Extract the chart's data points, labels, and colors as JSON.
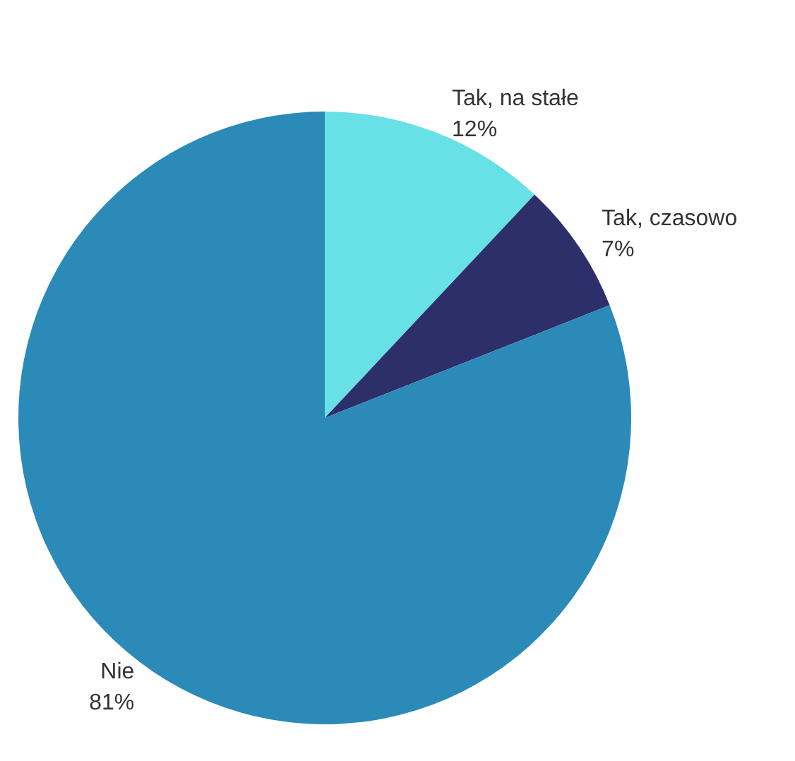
{
  "chart_data": {
    "type": "pie",
    "categories": [
      "Tak, na stałe",
      "Tak, czasowo",
      "Nie"
    ],
    "values": [
      12,
      7,
      81
    ],
    "value_labels": [
      "12%",
      "7%",
      "81%"
    ],
    "colors": [
      "#67e0e6",
      "#2d2f6b",
      "#2b8ab8"
    ],
    "legend": false
  }
}
